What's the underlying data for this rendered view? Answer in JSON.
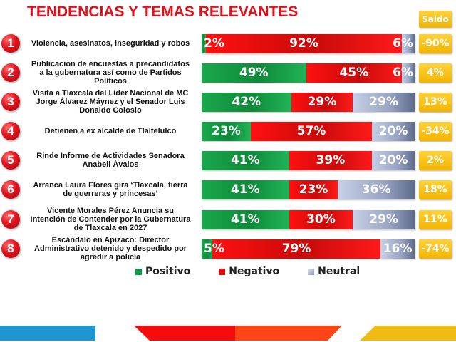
{
  "title": "TENDENCIAS Y TEMAS RELEVANTES",
  "saldo_header": "Saldo",
  "legend": [
    {
      "name": "Positivo",
      "color": "#0e9a44"
    },
    {
      "name": "Negativo",
      "color": "#e00d0d"
    },
    {
      "name": "Neutral",
      "color": "#8c98b8"
    }
  ],
  "colors": {
    "title": "#e3101a",
    "positive": "#0e9a44",
    "negative": "#e00d0d",
    "neutral": "#8c98b8",
    "saldo": "#f5bb0b",
    "badge": "#e0141e",
    "deco_blue": "#1e96cf",
    "deco_red": "#f50d0d",
    "deco_orange": "#ff4516",
    "deco_yellow": "#f0bb12"
  },
  "chart_data": {
    "type": "bar",
    "stacked": true,
    "orientation": "horizontal",
    "title": "TENDENCIAS Y TEMAS RELEVANTES",
    "xlabel": "",
    "ylabel": "",
    "xlim": [
      0,
      100
    ],
    "legend_position": "bottom",
    "categories": [
      "Violencia, asesinatos, inseguridad y robos",
      "Publicación de encuestas a precandidatos a la gubernatura así como de Partidos Políticos",
      "Visita a Tlaxcala del Líder Nacional de MC Jorge Álvarez Máynez y el Senador Luis Donaldo Colosio",
      "Detienen a ex alcalde de Tlaltelulco",
      "Rinde Informe de Actividades Senadora Anabell Ávalos",
      "Arranca Laura Flores gira ‘Tlaxcala, tierra de guerreras y princesas’",
      "Vicente Morales Pérez Anuncia su Intención de Contender por la Gubernatura de Tlaxcala en 2027",
      "Escándalo en Apizaco: Director Administrativo detenido y despedido por agredir a policía"
    ],
    "series": [
      {
        "name": "Positivo",
        "values": [
          2,
          49,
          42,
          23,
          41,
          41,
          41,
          5
        ]
      },
      {
        "name": "Negativo",
        "values": [
          92,
          45,
          29,
          57,
          39,
          23,
          30,
          79
        ]
      },
      {
        "name": "Neutral",
        "values": [
          6,
          6,
          29,
          20,
          20,
          36,
          29,
          16
        ]
      }
    ],
    "saldo": [
      "-90%",
      "4%",
      "13%",
      "-34%",
      "2%",
      "18%",
      "11%",
      "-74%"
    ]
  },
  "rows": [
    {
      "num": "1",
      "lines": [
        "Violencia, asesinatos, inseguridad y robos"
      ]
    },
    {
      "num": "2",
      "lines": [
        "Publicación de encuestas a precandidatos",
        "a la gubernatura así como de Partidos",
        "Políticos"
      ]
    },
    {
      "num": "3",
      "lines": [
        "Visita a Tlaxcala del Líder Nacional de MC",
        "Jorge Álvarez Máynez y el Senador Luis",
        "Donaldo Colosio"
      ]
    },
    {
      "num": "4",
      "lines": [
        "Detienen a ex alcalde de Tlaltelulco"
      ]
    },
    {
      "num": "5",
      "lines": [
        "Rinde Informe de Actividades Senadora",
        "Anabell Ávalos"
      ]
    },
    {
      "num": "6",
      "lines": [
        "Arranca Laura Flores gira ‘Tlaxcala, tierra",
        "de guerreras y princesas’"
      ]
    },
    {
      "num": "7",
      "lines": [
        "Vicente Morales Pérez Anuncia su",
        "Intención de Contender por la Gubernatura",
        "de Tlaxcala en 2027"
      ]
    },
    {
      "num": "8",
      "lines": [
        "Escándalo en Apizaco: Director",
        "Administrativo detenido y despedido por",
        "agredir a policía"
      ]
    }
  ]
}
